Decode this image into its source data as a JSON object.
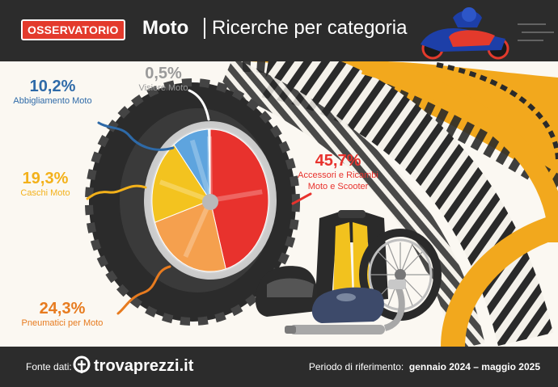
{
  "header": {
    "badge": "OSSERVATORIO",
    "category": "Moto",
    "subtitle": "Ricerche per categoria"
  },
  "footer": {
    "source_label": "Fonte dati:",
    "brand": "trovaprezzi.it",
    "period_label": "Periodo di riferimento:",
    "period_value": "gennaio 2024 – maggio 2025"
  },
  "colors": {
    "accessori": "#e8322d",
    "pneumatici": "#f5a04e",
    "caschi": "#f3c31f",
    "abbigliamento": "#5ea4de",
    "visiere": "#eeeeee",
    "tire_stripe": "#f2a81d"
  },
  "icons": [
    "motorcycle-rider-illustration",
    "tire-illustration",
    "moto-jacket-illustration",
    "helmet-illustration",
    "fuel-tank-illustration",
    "exhaust-illustration",
    "spoked-wheel-illustration",
    "trovaprezzi-logo-icon"
  ],
  "chart_data": {
    "type": "pie",
    "title": "Ricerche per categoria",
    "unit": "%",
    "slices": [
      {
        "label": "Accessori e Ricambi Moto e Scooter",
        "value": 45.7,
        "display": "45,7%",
        "color": "#e8322d"
      },
      {
        "label": "Pneumatici per Moto",
        "value": 24.3,
        "display": "24,3%",
        "color": "#f5a04e"
      },
      {
        "label": "Caschi Moto",
        "value": 19.3,
        "display": "19,3%",
        "color": "#f3c31f"
      },
      {
        "label": "Abbigliamento Moto",
        "value": 10.2,
        "display": "10,2%",
        "color": "#5ea4de"
      },
      {
        "label": "Visiere Moto",
        "value": 0.5,
        "display": "0,5%",
        "color": "#eeeeee"
      }
    ]
  },
  "labels": {
    "accessori_pct": "45,7%",
    "accessori_line1": "Accessori e Ricambi",
    "accessori_line2": "Moto e Scooter",
    "pneumatici_pct": "24,3%",
    "pneumatici_name": "Pneumatici per Moto",
    "caschi_pct": "19,3%",
    "caschi_name": "Caschi Moto",
    "abbigliamento_pct": "10,2%",
    "abbigliamento_name": "Abbigliamento Moto",
    "visiere_pct": "0,5%",
    "visiere_name": "Visiere Moto"
  }
}
